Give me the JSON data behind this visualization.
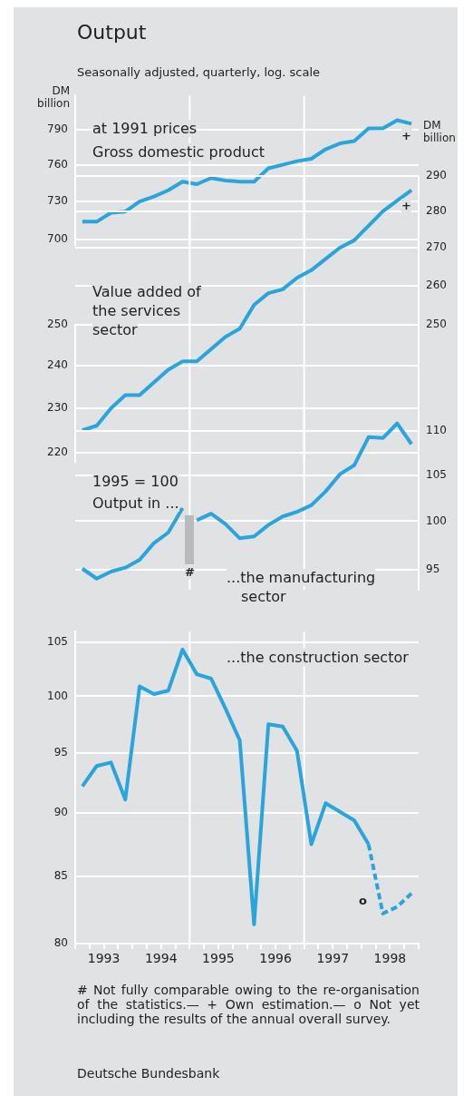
{
  "chart_data": [
    {
      "type": "line",
      "title": "Output",
      "subtitle": "Seasonally adjusted, quarterly, log. scale",
      "ylabel": "DM billion",
      "log": true,
      "grid": "y",
      "tick_labels": "y",
      "xlim": [
        1993,
        1999
      ],
      "ylim": [
        696,
        820
      ],
      "yticks": [
        700,
        730,
        760,
        790
      ],
      "x": [
        1993.125,
        1993.375,
        1993.625,
        1993.875,
        1994.125,
        1994.375,
        1994.625,
        1994.875,
        1995.125,
        1995.375,
        1995.625,
        1995.875,
        1996.125,
        1996.375,
        1996.625,
        1996.875,
        1997.125,
        1997.375,
        1997.625,
        1997.875,
        1998.125,
        1998.375,
        1998.625,
        1998.875
      ],
      "series": [
        {
          "color": "#2aa5dc",
          "values": [
            714,
            714,
            721,
            722,
            730,
            734,
            739,
            746,
            744,
            749,
            747,
            746,
            746,
            757,
            760,
            763,
            765,
            773,
            778,
            780,
            791,
            791,
            798,
            795
          ]
        }
      ],
      "ref_lines": [
        {
          "axis": "x",
          "value": 1995,
          "color": "#ffffff"
        },
        {
          "axis": "x",
          "value": 1997,
          "color": "#ffffff"
        }
      ],
      "annotations": [
        "at 1991 prices",
        "Gross domestic product",
        "+"
      ]
    },
    {
      "type": "line",
      "y2label": "DM billion",
      "log": "y2",
      "grid": "y",
      "tick_labels": "y",
      "xlim": [
        1993,
        1999
      ],
      "ylim": [
        218,
        250
      ],
      "yticks": [
        220,
        230,
        240,
        250
      ],
      "y2lim": [
        218,
        290
      ],
      "y2ticks": [
        250,
        260,
        270,
        280,
        290
      ],
      "x": [
        1993.125,
        1993.375,
        1993.625,
        1993.875,
        1994.125,
        1994.375,
        1994.625,
        1994.875,
        1995.125,
        1995.375,
        1995.625,
        1995.875,
        1996.125,
        1996.375,
        1996.625,
        1996.875,
        1997.125,
        1997.375,
        1997.625,
        1997.875,
        1998.125,
        1998.375,
        1998.625,
        1998.875
      ],
      "series": [
        {
          "color": "#2aa5dc",
          "axis": "y2",
          "values": [
            225,
            226,
            230,
            233,
            233,
            236,
            239,
            241,
            241,
            244,
            247,
            249,
            255,
            258,
            259,
            262,
            264,
            267,
            270,
            272,
            276,
            280,
            283,
            286
          ]
        }
      ],
      "ref_lines": [
        {
          "axis": "x",
          "value": 1995,
          "color": "#ffffff"
        },
        {
          "axis": "x",
          "value": 1997,
          "color": "#ffffff"
        }
      ],
      "annotations": [
        "Value added of the services sector",
        "+"
      ]
    },
    {
      "type": "line",
      "log": "y2",
      "grid": "y",
      "tick_labels": "y",
      "xlim": [
        1993,
        1999
      ],
      "y2lim": [
        93,
        113
      ],
      "y2ticks": [
        95,
        100,
        105,
        110
      ],
      "series": [
        {
          "color": "#2aa5dc",
          "axis": "y2",
          "x": [
            1993.125,
            1993.375,
            1993.625,
            1993.875,
            1994.125,
            1994.375,
            1994.625,
            1994.875
          ],
          "values": [
            95.1,
            94.1,
            94.8,
            95.2,
            96.0,
            97.7,
            98.8,
            101.4
          ]
        },
        {
          "color": "#2aa5dc",
          "axis": "y2",
          "x": [
            1995.125,
            1995.375,
            1995.625,
            1995.875,
            1996.125,
            1996.375,
            1996.625,
            1996.875,
            1997.125,
            1997.375,
            1997.625,
            1997.875,
            1998.125,
            1998.375,
            1998.625,
            1998.875
          ],
          "values": [
            100.1,
            100.8,
            99.7,
            98.2,
            98.4,
            99.6,
            100.5,
            101.0,
            101.7,
            103.2,
            105.1,
            106.1,
            109.3,
            109.2,
            110.9,
            108.5
          ]
        }
      ],
      "ref_lines": [
        {
          "axis": "x",
          "value": 1995,
          "color": "#ffffff"
        },
        {
          "axis": "x",
          "value": 1997,
          "color": "#ffffff"
        }
      ],
      "annotations": [
        "1995 = 100",
        "Output in ...",
        "#",
        "...the manufacturing sector"
      ]
    },
    {
      "type": "line",
      "log": true,
      "grid": "y",
      "xlim": [
        1993,
        1999
      ],
      "ylim": [
        80,
        106
      ],
      "yticks": [
        80,
        85,
        90,
        95,
        100,
        105
      ],
      "xticks": [
        {
          "value": 1993,
          "label": null
        },
        {
          "value": 1993.25,
          "label": null
        },
        {
          "value": 1993.5,
          "label": "1993"
        },
        {
          "value": 1993.75,
          "label": null
        },
        {
          "value": 1994,
          "label": null
        },
        {
          "value": 1994.25,
          "label": null
        },
        {
          "value": 1994.5,
          "label": "1994"
        },
        {
          "value": 1994.75,
          "label": null
        },
        {
          "value": 1995,
          "label": null
        },
        {
          "value": 1995.25,
          "label": null
        },
        {
          "value": 1995.5,
          "label": "1995"
        },
        {
          "value": 1995.75,
          "label": null
        },
        {
          "value": 1996,
          "label": null
        },
        {
          "value": 1996.25,
          "label": null
        },
        {
          "value": 1996.5,
          "label": "1996"
        },
        {
          "value": 1996.75,
          "label": null
        },
        {
          "value": 1997,
          "label": null
        },
        {
          "value": 1997.25,
          "label": null
        },
        {
          "value": 1997.5,
          "label": "1997"
        },
        {
          "value": 1997.75,
          "label": null
        },
        {
          "value": 1998,
          "label": null
        },
        {
          "value": 1998.25,
          "label": null
        },
        {
          "value": 1998.5,
          "label": "1998"
        },
        {
          "value": 1998.75,
          "label": null
        },
        {
          "value": 1999,
          "label": null
        }
      ],
      "series": [
        {
          "color": "#2aa5dc",
          "x": [
            1993.125,
            1993.375,
            1993.625,
            1993.875,
            1994.125,
            1994.375,
            1994.625,
            1994.875,
            1995.125,
            1995.375,
            1995.625,
            1995.875,
            1996.125,
            1996.375,
            1996.625,
            1996.875,
            1997.125,
            1997.375,
            1997.625,
            1997.875,
            1998.125
          ],
          "values": [
            92.2,
            93.9,
            94.2,
            91.1,
            100.9,
            100.2,
            100.5,
            104.3,
            102.0,
            101.6,
            98.9,
            96.1,
            81.4,
            97.5,
            97.3,
            95.2,
            87.5,
            90.8,
            90.1,
            89.4,
            87.5
          ]
        },
        {
          "color": "#2aa5dc",
          "line_style": "dashed",
          "x": [
            1998.125,
            1998.375,
            1998.625,
            1998.875
          ],
          "values": [
            87.5,
            82.2,
            82.7,
            83.7
          ]
        }
      ],
      "ref_lines": [
        {
          "axis": "x",
          "value": 1995,
          "color": "#ffffff"
        },
        {
          "axis": "x",
          "value": 1997,
          "color": "#ffffff"
        }
      ],
      "annotations": [
        "...the construction sector",
        "o",
        "# Not fully comparable owing to the re-organisation of the statistics.— + Own estimation.— o Not yet including the results of the annual overall survey.",
        "Deutsche Bundesbank"
      ]
    }
  ]
}
